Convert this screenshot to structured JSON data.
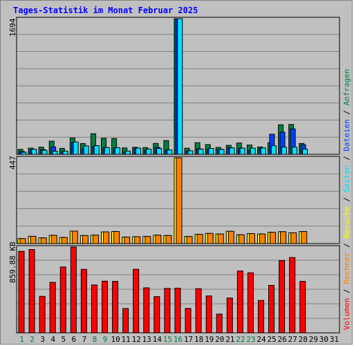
{
  "title": "Tages-Statistik im Monat Februar 2025",
  "colors": {
    "anfragen": "#008040",
    "dateien": "#0040ff",
    "seiten": "#00e0ff",
    "besuche": "#ffff00",
    "rechner": "#ff8000",
    "volumen": "#ff0000",
    "weekend_day": "#008040",
    "normal_day": "#000000"
  },
  "legend": [
    {
      "label": "Volumen",
      "color": "#ff0000"
    },
    {
      "label": "Rechner",
      "color": "#ff8000"
    },
    {
      "label": "Besuche",
      "color": "#ffff00"
    },
    {
      "label": "Seiten",
      "color": "#00e0ff"
    },
    {
      "label": "Dateien",
      "color": "#0040ff"
    },
    {
      "label": "Anfragen",
      "color": "#008040"
    }
  ],
  "legend_separator": " / ",
  "chart_data": [
    {
      "type": "bar",
      "panel": "hits",
      "y_label": "1694",
      "ylim": [
        0,
        1694
      ],
      "grid": true,
      "categories": [
        "1",
        "2",
        "3",
        "4",
        "5",
        "6",
        "7",
        "8",
        "9",
        "10",
        "11",
        "12",
        "13",
        "14",
        "15",
        "16",
        "17",
        "18",
        "19",
        "20",
        "21",
        "22",
        "23",
        "24",
        "25",
        "26",
        "27",
        "28",
        "29",
        "30",
        "31"
      ],
      "weekend_days": [
        "1",
        "2",
        "8",
        "9",
        "15",
        "16",
        "22",
        "23"
      ],
      "series": [
        {
          "name": "Anfragen",
          "values": [
            62,
            77,
            90,
            165,
            74,
            204,
            134,
            257,
            201,
            198,
            80,
            88,
            84,
            136,
            172,
            1694,
            76,
            145,
            122,
            86,
            112,
            141,
            116,
            92,
            145,
            369,
            373,
            135,
            null,
            null,
            null
          ]
        },
        {
          "name": "Dateien",
          "values": [
            35,
            55,
            58,
            92,
            35,
            148,
            71,
            98,
            84,
            77,
            26,
            72,
            53,
            87,
            55,
            1694,
            42,
            68,
            67,
            63,
            82,
            72,
            52,
            74,
            251,
            276,
            318,
            119,
            null,
            null,
            null
          ]
        },
        {
          "name": "Seiten",
          "values": [
            26,
            64,
            51,
            39,
            40,
            154,
            105,
            108,
            84,
            83,
            41,
            78,
            66,
            74,
            55,
            1694,
            44,
            65,
            74,
            61,
            80,
            77,
            77,
            80,
            107,
            90,
            91,
            65,
            null,
            null,
            null
          ]
        }
      ]
    },
    {
      "type": "bar",
      "panel": "visits",
      "y_label": "447",
      "ylim": [
        0,
        447
      ],
      "grid": true,
      "categories": [
        "1",
        "2",
        "3",
        "4",
        "5",
        "6",
        "7",
        "8",
        "9",
        "10",
        "11",
        "12",
        "13",
        "14",
        "15",
        "16",
        "17",
        "18",
        "19",
        "20",
        "21",
        "22",
        "23",
        "24",
        "25",
        "26",
        "27",
        "28",
        "29",
        "30",
        "31"
      ],
      "series": [
        {
          "name": "Besuche",
          "values": [
            26,
            38,
            30,
            43,
            32,
            65,
            42,
            44,
            61,
            63,
            34,
            36,
            37,
            44,
            42,
            447,
            37,
            48,
            53,
            50,
            64,
            46,
            52,
            50,
            59,
            62,
            56,
            63,
            null,
            null,
            null
          ]
        },
        {
          "name": "Rechner",
          "values": [
            26,
            38,
            30,
            43,
            32,
            65,
            42,
            44,
            61,
            63,
            34,
            36,
            37,
            44,
            42,
            447,
            37,
            48,
            53,
            50,
            64,
            46,
            52,
            50,
            59,
            62,
            56,
            63,
            null,
            null,
            null
          ]
        }
      ]
    },
    {
      "type": "bar",
      "panel": "volume",
      "y_label": "859.88 KB",
      "ylim": [
        0,
        859.88
      ],
      "grid": true,
      "categories": [
        "1",
        "2",
        "3",
        "4",
        "5",
        "6",
        "7",
        "8",
        "9",
        "10",
        "11",
        "12",
        "13",
        "14",
        "15",
        "16",
        "17",
        "18",
        "19",
        "20",
        "21",
        "22",
        "23",
        "24",
        "25",
        "26",
        "27",
        "28",
        "29",
        "30",
        "31"
      ],
      "series": [
        {
          "name": "Volumen",
          "values": [
            817,
            835,
            366,
            506,
            660,
            860,
            637,
            480,
            518,
            516,
            244,
            637,
            451,
            363,
            445,
            448,
            245,
            443,
            370,
            188,
            349,
            620,
            602,
            325,
            476,
            725,
            755,
            516,
            null,
            null,
            null
          ]
        }
      ]
    }
  ]
}
